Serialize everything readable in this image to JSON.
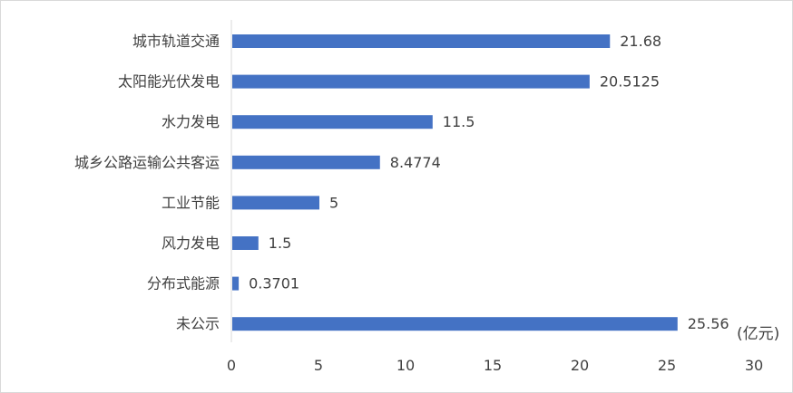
{
  "chart_data": {
    "type": "bar",
    "orientation": "horizontal",
    "categories": [
      "城市轨道交通",
      "太阳能光伏发电",
      "水力发电",
      "城乡公路运输公共客运",
      "工业节能",
      "风力发电",
      "分布式能源",
      "未公示"
    ],
    "values": [
      21.68,
      20.5125,
      11.5,
      8.4774,
      5,
      1.5,
      0.3701,
      25.56
    ],
    "value_labels": [
      "21.68",
      "20.5125",
      "11.5",
      "8.4774",
      "5",
      "1.5",
      "0.3701",
      "25.56"
    ],
    "x_ticks": [
      "0",
      "5",
      "10",
      "15",
      "20",
      "25",
      "30"
    ],
    "xlim": [
      0,
      30
    ],
    "unit": "(亿元)",
    "title": "",
    "xlabel": "",
    "ylabel": "",
    "grid": false,
    "bar_color": "#4472c4"
  }
}
